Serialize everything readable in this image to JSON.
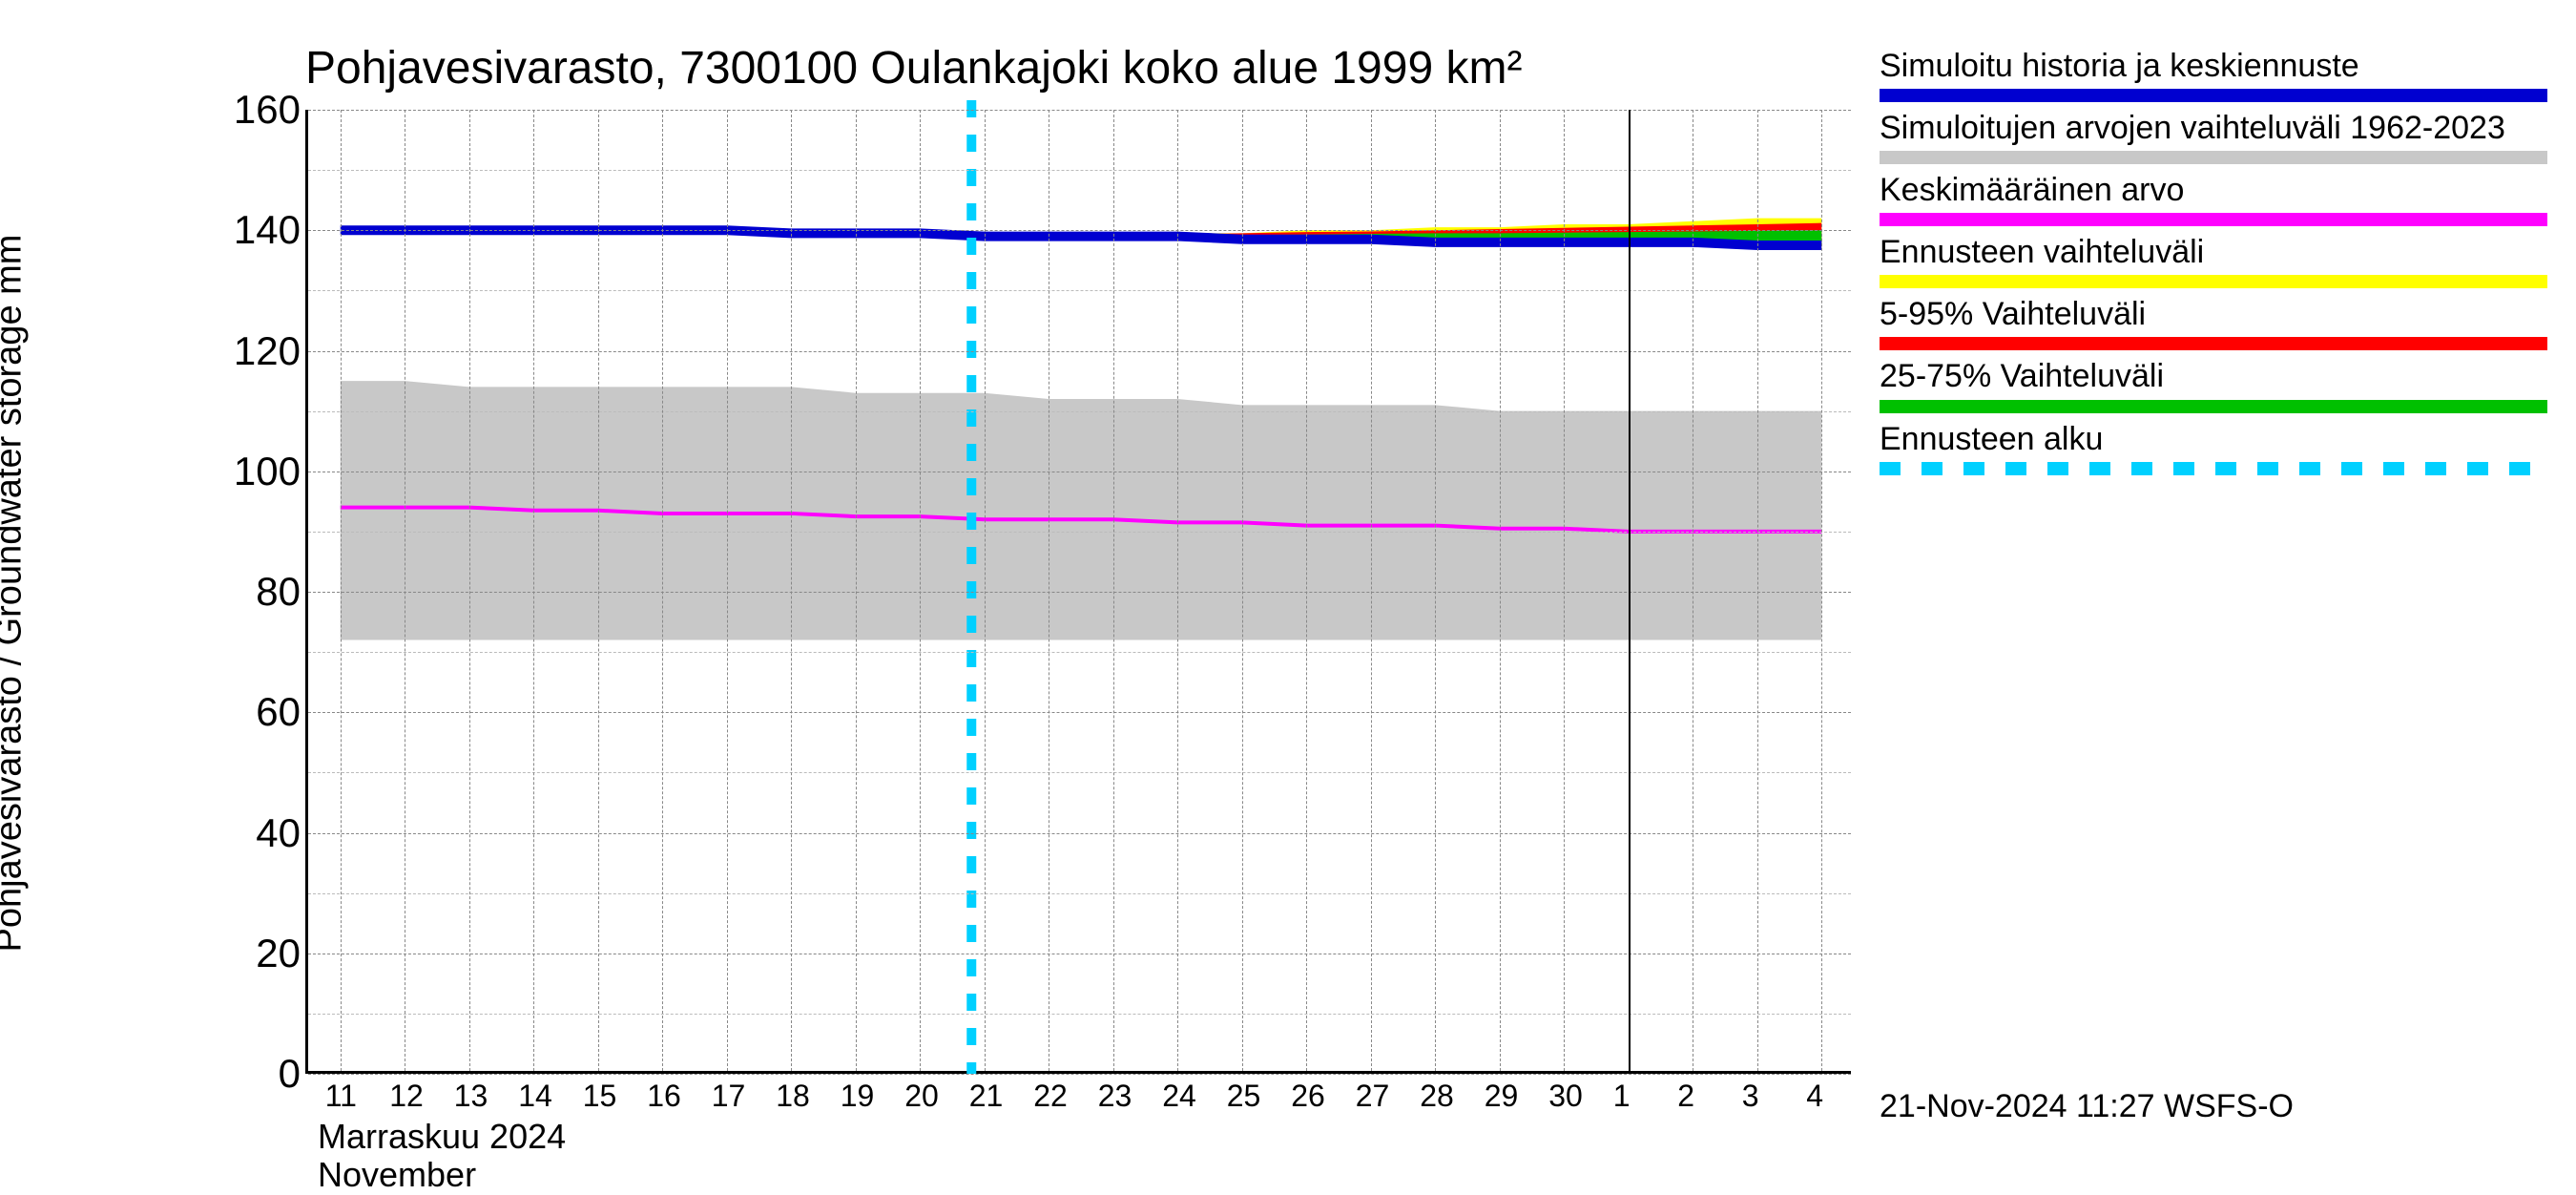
{
  "chart": {
    "type": "line",
    "title": "Pohjavesivarasto, 7300100 Oulankajoki koko alue 1999 km²",
    "y_axis_label": "Pohjavesivarasto / Groundwater storage   mm",
    "title_fontsize": 48,
    "ylabel_fontsize": 38,
    "tick_fontsize": 42,
    "xtick_fontsize": 32,
    "legend_fontsize": 34,
    "background_color": "#ffffff",
    "grid_color_major": "#888888",
    "grid_color_minor": "#bbbbbb",
    "axis_color": "#000000",
    "ylim": [
      0,
      160
    ],
    "ytick_step": 20,
    "ytick_minor_step": 10,
    "x_ticks": [
      "11",
      "12",
      "13",
      "14",
      "15",
      "16",
      "17",
      "18",
      "19",
      "20",
      "21",
      "22",
      "23",
      "24",
      "25",
      "26",
      "27",
      "28",
      "29",
      "30",
      "1",
      "2",
      "3",
      "4"
    ],
    "x_month_labels": [
      "Marraskuu 2024",
      "November"
    ],
    "series": {
      "historical_range": {
        "name": "Simuloitujen arvojen vaihteluväli 1962-2023",
        "color": "#c8c8c8",
        "upper": [
          115,
          115,
          114,
          114,
          114,
          114,
          114,
          114,
          113,
          113,
          113,
          112,
          112,
          112,
          111,
          111,
          111,
          111,
          110,
          110,
          110,
          110,
          110,
          110
        ],
        "lower": [
          72,
          72,
          72,
          72,
          72,
          72,
          72,
          72,
          72,
          72,
          72,
          72,
          72,
          72,
          72,
          72,
          72,
          72,
          72,
          72,
          72,
          72,
          72,
          72
        ]
      },
      "mean_value": {
        "name": "Keskimääräinen arvo",
        "color": "#ff00ff",
        "line_width": 4,
        "values": [
          94,
          94,
          94,
          93.5,
          93.5,
          93,
          93,
          93,
          92.5,
          92.5,
          92,
          92,
          92,
          91.5,
          91.5,
          91,
          91,
          91,
          90.5,
          90.5,
          90,
          90,
          90,
          90
        ]
      },
      "simulated_main": {
        "name": "Simuloitu historia ja keskiennuste",
        "color": "#0000d0",
        "line_width": 10,
        "values": [
          140,
          140,
          140,
          140,
          140,
          140,
          140,
          139.5,
          139.5,
          139.5,
          139,
          139,
          139,
          139,
          138.5,
          138.5,
          138.5,
          138,
          138,
          138,
          138,
          138,
          137.5,
          137.5
        ]
      },
      "forecast_range_yellow": {
        "name": "Ennusteen vaihteluväli",
        "color": "#ffff00",
        "start_index": 10,
        "upper": [
          139,
          139,
          139.5,
          139.5,
          139.5,
          140,
          140,
          140.5,
          140.5,
          141,
          141,
          141.5,
          142,
          142
        ],
        "lower": [
          139,
          139,
          138.5,
          138.5,
          138.5,
          138,
          138,
          138,
          138,
          137.5,
          137.5,
          137.5,
          137,
          137
        ]
      },
      "forecast_range_red": {
        "name": "5-95% Vaihteluväli",
        "color": "#ff0000",
        "start_index": 10,
        "upper": [
          139,
          139,
          139.2,
          139.3,
          139.5,
          139.7,
          139.8,
          140,
          140.2,
          140.4,
          140.6,
          140.8,
          141,
          141.2
        ],
        "lower": [
          139,
          139,
          138.8,
          138.7,
          138.5,
          138.3,
          138.2,
          138,
          138,
          137.8,
          137.7,
          137.6,
          137.5,
          137.3
        ]
      },
      "forecast_range_green": {
        "name": "25-75% Vaihteluväli",
        "color": "#00c000",
        "start_index": 10,
        "upper": [
          139,
          139,
          139.1,
          139.2,
          139.2,
          139.3,
          139.4,
          139.5,
          139.5,
          139.6,
          139.7,
          139.8,
          139.9,
          140
        ],
        "lower": [
          139,
          139,
          138.9,
          138.8,
          138.7,
          138.6,
          138.5,
          138.4,
          138.3,
          138.2,
          138.1,
          138,
          137.9,
          137.8
        ]
      },
      "forecast_start": {
        "name": "Ennusteen alku",
        "color": "#00d0ff",
        "dash": "18,18",
        "line_width": 10,
        "x_index": 9.8
      }
    },
    "legend_order": [
      "simulated_main",
      "historical_range",
      "mean_value",
      "forecast_range_yellow",
      "forecast_range_red",
      "forecast_range_green",
      "forecast_start"
    ],
    "footer": "21-Nov-2024 11:27 WSFS-O"
  }
}
